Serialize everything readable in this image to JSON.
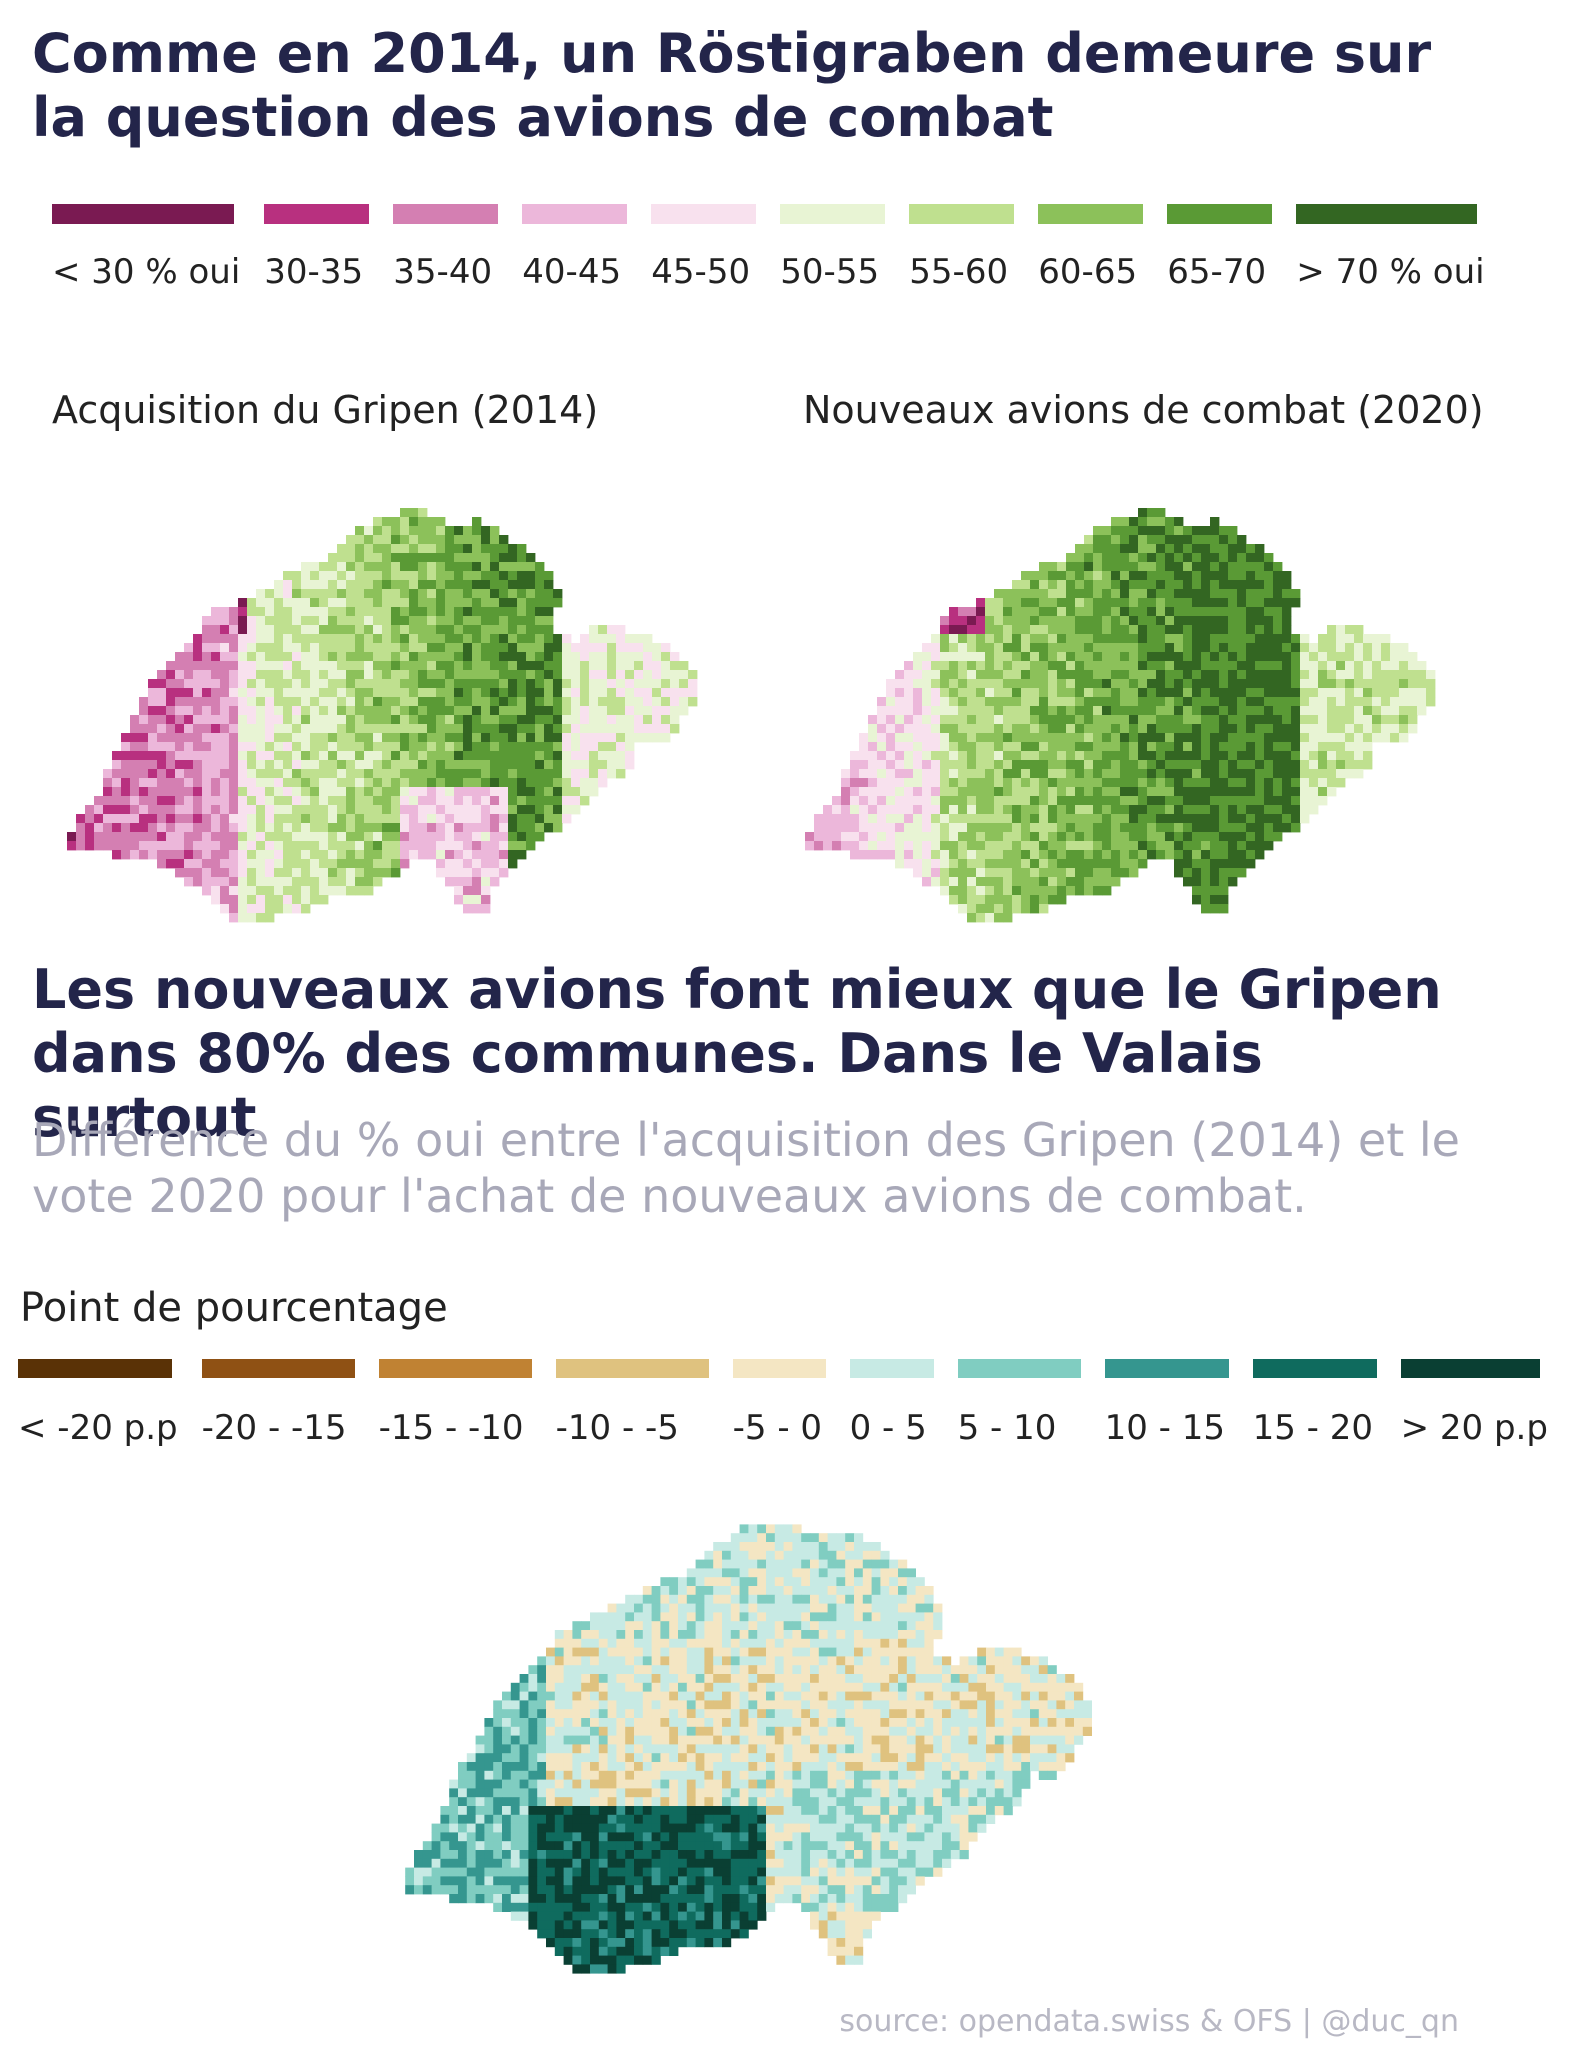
{
  "title_top": "Comme en 2014, un Röstigraben demeure sur la question des avions de combat",
  "legend_top": {
    "items": [
      {
        "label": "< 30 % oui",
        "color": "#7a1a52"
      },
      {
        "label": "30-35",
        "color": "#b8307f"
      },
      {
        "label": "35-40",
        "color": "#d47fb2"
      },
      {
        "label": "40-45",
        "color": "#ecb7da"
      },
      {
        "label": "45-50",
        "color": "#f8e1ee"
      },
      {
        "label": "50-55",
        "color": "#e8f4d4"
      },
      {
        "label": "55-60",
        "color": "#bfe08f"
      },
      {
        "label": "60-65",
        "color": "#8cc15a"
      },
      {
        "label": "65-70",
        "color": "#5a9a35"
      },
      {
        "label": "> 70 % oui",
        "color": "#336622"
      }
    ]
  },
  "maps_top": [
    {
      "label": "Acquisition du Gripen (2014)"
    },
    {
      "label": "Nouveaux avions de combat (2020)"
    }
  ],
  "title_bottom": "Les nouveaux avions font mieux que le Gripen dans 80% des communes. Dans le Valais surtout",
  "subtitle_bottom": "Différence du % oui entre l'acquisition des Gripen (2014) et le vote 2020 pour l'achat de nouveaux avions de combat.",
  "legend_bottom": {
    "title": "Point de pourcentage",
    "items": [
      {
        "label": "< -20 p.p",
        "color": "#5a3206"
      },
      {
        "label": "-20 - -15",
        "color": "#8f5114"
      },
      {
        "label": "-15 - -10",
        "color": "#c08233"
      },
      {
        "label": "-10 - -5",
        "color": "#dfc27f"
      },
      {
        "label": "-5 - 0",
        "color": "#f4e6c3"
      },
      {
        "label": "0 - 5",
        "color": "#c7eae4"
      },
      {
        "label": "5 - 10",
        "color": "#80cdc1"
      },
      {
        "label": "10 - 15",
        "color": "#35968f"
      },
      {
        "label": "15 - 20",
        "color": "#0f6b5e"
      },
      {
        "label": "> 20 p.p",
        "color": "#0a3f33"
      }
    ]
  },
  "source": "source: opendata.swiss & OFS | @duc_qn"
}
